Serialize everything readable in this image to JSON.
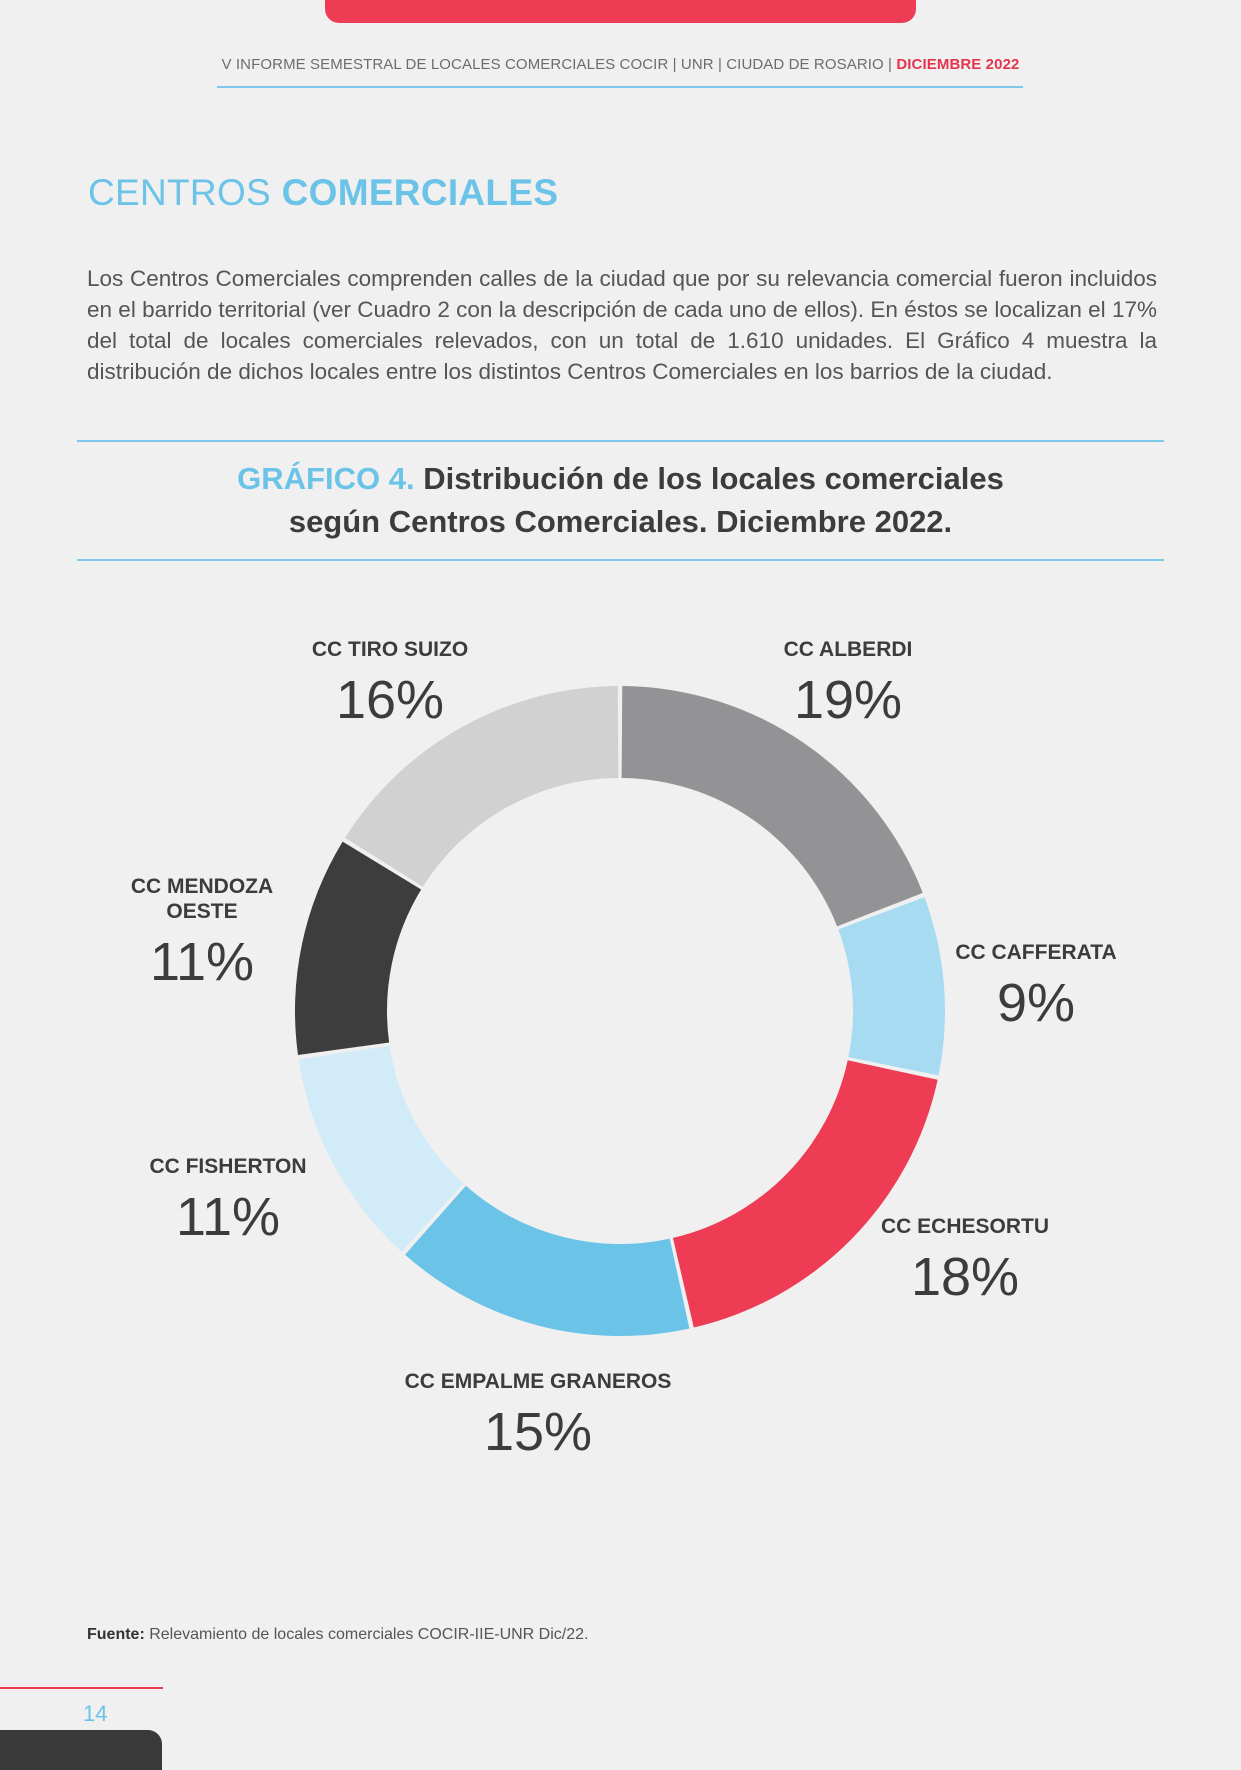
{
  "header": {
    "text": "V INFORME SEMESTRAL DE LOCALES COMERCIALES COCIR | UNR | CIUDAD DE ROSARIO |",
    "accent": "DICIEMBRE 2022"
  },
  "section": {
    "title_light": "CENTROS ",
    "title_bold": "COMERCIALES"
  },
  "intro": "Los Centros Comerciales comprenden calles de la ciudad que por su relevancia comercial fueron incluidos en el barrido territorial (ver Cuadro 2 con la descripción de cada uno de ellos). En éstos se localizan el 17% del total de locales comerciales relevados, con un total de 1.610 unidades. El Gráfico 4 muestra la distribución de dichos locales entre los distintos Centros Comerciales en los barrios de la ciudad.",
  "figure": {
    "lead": "GRÁFICO 4.",
    "title_line1": " Distribución de los locales comerciales",
    "title_line2": "según Centros Comerciales. Diciembre 2022."
  },
  "chart_data": {
    "type": "pie",
    "variant": "donut",
    "unit": "%",
    "slices": [
      {
        "label": "CC ALBERDI",
        "value": 19,
        "display": "19%",
        "color": "#939396"
      },
      {
        "label": "CC CAFFERATA",
        "value": 9,
        "display": "9%",
        "color": "#a6dbf2"
      },
      {
        "label": "CC ECHESORTU",
        "value": 18,
        "display": "18%",
        "color": "#ee3c55"
      },
      {
        "label": "CC EMPALME GRANEROS",
        "value": 15,
        "display": "15%",
        "color": "#6cc3e8"
      },
      {
        "label": "CC FISHERTON",
        "value": 11,
        "display": "11%",
        "color": "#d1ebf8"
      },
      {
        "label": "CC MENDOZA OESTE",
        "value": 11,
        "display": "11%",
        "color": "#3d3d3d"
      },
      {
        "label": "CC TIRO SUIZO",
        "value": 16,
        "display": "16%",
        "color": "#d0d1d0"
      }
    ],
    "label_lines": {
      "CC MENDOZA OESTE": [
        "CC MENDOZA",
        "OESTE"
      ]
    }
  },
  "source": {
    "label": "Fuente:",
    "text": " Relevamiento de locales comerciales COCIR-IIE-UNR Dic/22."
  },
  "page_number": "14",
  "colors": {
    "accent_red": "#ee3c55",
    "accent_blue": "#6cc3e8",
    "background": "#f0f0f0"
  }
}
